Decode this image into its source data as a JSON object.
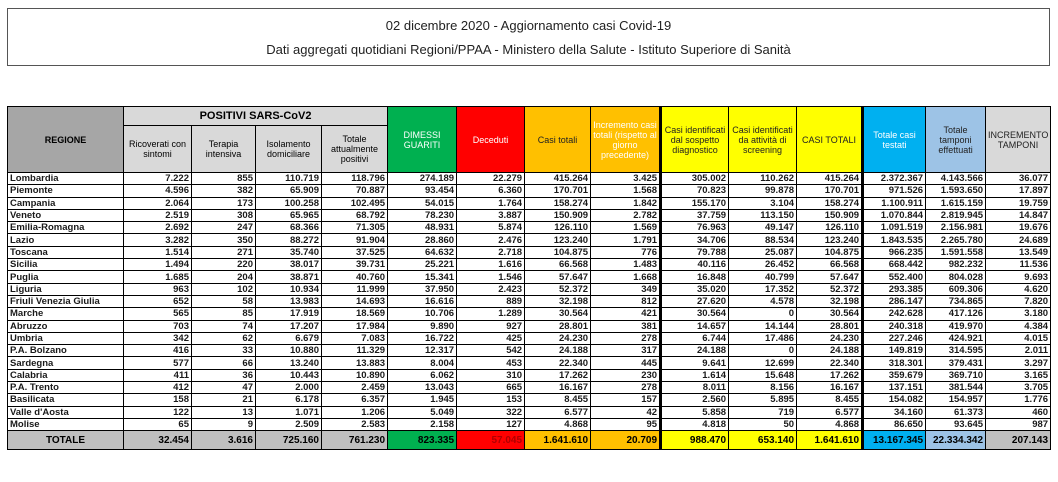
{
  "title": {
    "line1": "02 dicembre 2020 - Aggiornamento casi Covid-19",
    "line2": "Dati aggregati quotidiani Regioni/PPAA - Ministero della Salute - Istituto Superiore di Sanità"
  },
  "header": {
    "regione": "REGIONE",
    "positivi_group": "POSITIVI SARS-CoV2",
    "columns": [
      "Ricoverati con sintomi",
      "Terapia intensiva",
      "Isolamento domiciliare",
      "Totale attualmente positivi",
      "DIMESSI GUARITI",
      "Deceduti",
      "Casi totali",
      "Incremento casi totali (rispetto al giorno precedente)",
      "Casi identificati dal sospetto diagnostico",
      "Casi identificati da attività di screening",
      "CASI TOTALI",
      "Totale casi testati",
      "Totale tamponi effettuati",
      "INCREMENTO TAMPONI"
    ]
  },
  "colors": {
    "regione_header": "#a6a6a6",
    "positivi_header": "#d9d9d9",
    "dimessi": "#00b050",
    "deceduti": "#ff0000",
    "casi": "#ffc000",
    "screening": "#ffff00",
    "testati": "#00b0f0",
    "tamponi": "#9dc3e6",
    "incremento_tamponi": "#d9d9d9",
    "totale_row": "#bfbfbf"
  },
  "rows": [
    [
      "Lombardia",
      "7.222",
      "855",
      "110.719",
      "118.796",
      "274.189",
      "22.279",
      "415.264",
      "3.425",
      "305.002",
      "110.262",
      "415.264",
      "2.372.367",
      "4.143.566",
      "36.077"
    ],
    [
      "Piemonte",
      "4.596",
      "382",
      "65.909",
      "70.887",
      "93.454",
      "6.360",
      "170.701",
      "1.568",
      "70.823",
      "99.878",
      "170.701",
      "971.526",
      "1.593.650",
      "17.897"
    ],
    [
      "Campania",
      "2.064",
      "173",
      "100.258",
      "102.495",
      "54.015",
      "1.764",
      "158.274",
      "1.842",
      "155.170",
      "3.104",
      "158.274",
      "1.100.911",
      "1.615.159",
      "19.759"
    ],
    [
      "Veneto",
      "2.519",
      "308",
      "65.965",
      "68.792",
      "78.230",
      "3.887",
      "150.909",
      "2.782",
      "37.759",
      "113.150",
      "150.909",
      "1.070.844",
      "2.819.945",
      "14.847"
    ],
    [
      "Emilia-Romagna",
      "2.692",
      "247",
      "68.366",
      "71.305",
      "48.931",
      "5.874",
      "126.110",
      "1.569",
      "76.963",
      "49.147",
      "126.110",
      "1.091.519",
      "2.156.981",
      "19.676"
    ],
    [
      "Lazio",
      "3.282",
      "350",
      "88.272",
      "91.904",
      "28.860",
      "2.476",
      "123.240",
      "1.791",
      "34.706",
      "88.534",
      "123.240",
      "1.843.535",
      "2.265.780",
      "24.689"
    ],
    [
      "Toscana",
      "1.514",
      "271",
      "35.740",
      "37.525",
      "64.632",
      "2.718",
      "104.875",
      "776",
      "79.788",
      "25.087",
      "104.875",
      "966.235",
      "1.591.558",
      "13.549"
    ],
    [
      "Sicilia",
      "1.494",
      "220",
      "38.017",
      "39.731",
      "25.221",
      "1.616",
      "66.568",
      "1.483",
      "40.116",
      "26.452",
      "66.568",
      "668.442",
      "982.232",
      "11.536"
    ],
    [
      "Puglia",
      "1.685",
      "204",
      "38.871",
      "40.760",
      "15.341",
      "1.546",
      "57.647",
      "1.668",
      "16.848",
      "40.799",
      "57.647",
      "552.400",
      "804.028",
      "9.693"
    ],
    [
      "Liguria",
      "963",
      "102",
      "10.934",
      "11.999",
      "37.950",
      "2.423",
      "52.372",
      "349",
      "35.020",
      "17.352",
      "52.372",
      "293.385",
      "609.306",
      "4.620"
    ],
    [
      "Friuli Venezia Giulia",
      "652",
      "58",
      "13.983",
      "14.693",
      "16.616",
      "889",
      "32.198",
      "812",
      "27.620",
      "4.578",
      "32.198",
      "286.147",
      "734.865",
      "7.820"
    ],
    [
      "Marche",
      "565",
      "85",
      "17.919",
      "18.569",
      "10.706",
      "1.289",
      "30.564",
      "421",
      "30.564",
      "0",
      "30.564",
      "242.628",
      "417.126",
      "3.180"
    ],
    [
      "Abruzzo",
      "703",
      "74",
      "17.207",
      "17.984",
      "9.890",
      "927",
      "28.801",
      "381",
      "14.657",
      "14.144",
      "28.801",
      "240.318",
      "419.970",
      "4.384"
    ],
    [
      "Umbria",
      "342",
      "62",
      "6.679",
      "7.083",
      "16.722",
      "425",
      "24.230",
      "278",
      "6.744",
      "17.486",
      "24.230",
      "227.246",
      "424.921",
      "4.015"
    ],
    [
      "P.A. Bolzano",
      "416",
      "33",
      "10.880",
      "11.329",
      "12.317",
      "542",
      "24.188",
      "317",
      "24.188",
      "0",
      "24.188",
      "149.819",
      "314.595",
      "2.011"
    ],
    [
      "Sardegna",
      "577",
      "66",
      "13.240",
      "13.883",
      "8.004",
      "453",
      "22.340",
      "445",
      "9.641",
      "12.699",
      "22.340",
      "318.301",
      "379.431",
      "3.297"
    ],
    [
      "Calabria",
      "411",
      "36",
      "10.443",
      "10.890",
      "6.062",
      "310",
      "17.262",
      "230",
      "1.614",
      "15.648",
      "17.262",
      "359.679",
      "369.710",
      "3.165"
    ],
    [
      "P.A. Trento",
      "412",
      "47",
      "2.000",
      "2.459",
      "13.043",
      "665",
      "16.167",
      "278",
      "8.011",
      "8.156",
      "16.167",
      "137.151",
      "381.544",
      "3.705"
    ],
    [
      "Basilicata",
      "158",
      "21",
      "6.178",
      "6.357",
      "1.945",
      "153",
      "8.455",
      "157",
      "2.560",
      "5.895",
      "8.455",
      "154.082",
      "154.957",
      "1.776"
    ],
    [
      "Valle d'Aosta",
      "122",
      "13",
      "1.071",
      "1.206",
      "5.049",
      "322",
      "6.577",
      "42",
      "5.858",
      "719",
      "6.577",
      "34.160",
      "61.373",
      "460"
    ],
    [
      "Molise",
      "65",
      "9",
      "2.509",
      "2.583",
      "2.158",
      "127",
      "4.868",
      "95",
      "4.818",
      "50",
      "4.868",
      "86.650",
      "93.645",
      "987"
    ]
  ],
  "totale": [
    "TOTALE",
    "32.454",
    "3.616",
    "725.160",
    "761.230",
    "823.335",
    "57.045",
    "1.641.610",
    "20.709",
    "988.470",
    "653.140",
    "1.641.610",
    "13.167.345",
    "22.334.342",
    "207.143"
  ]
}
